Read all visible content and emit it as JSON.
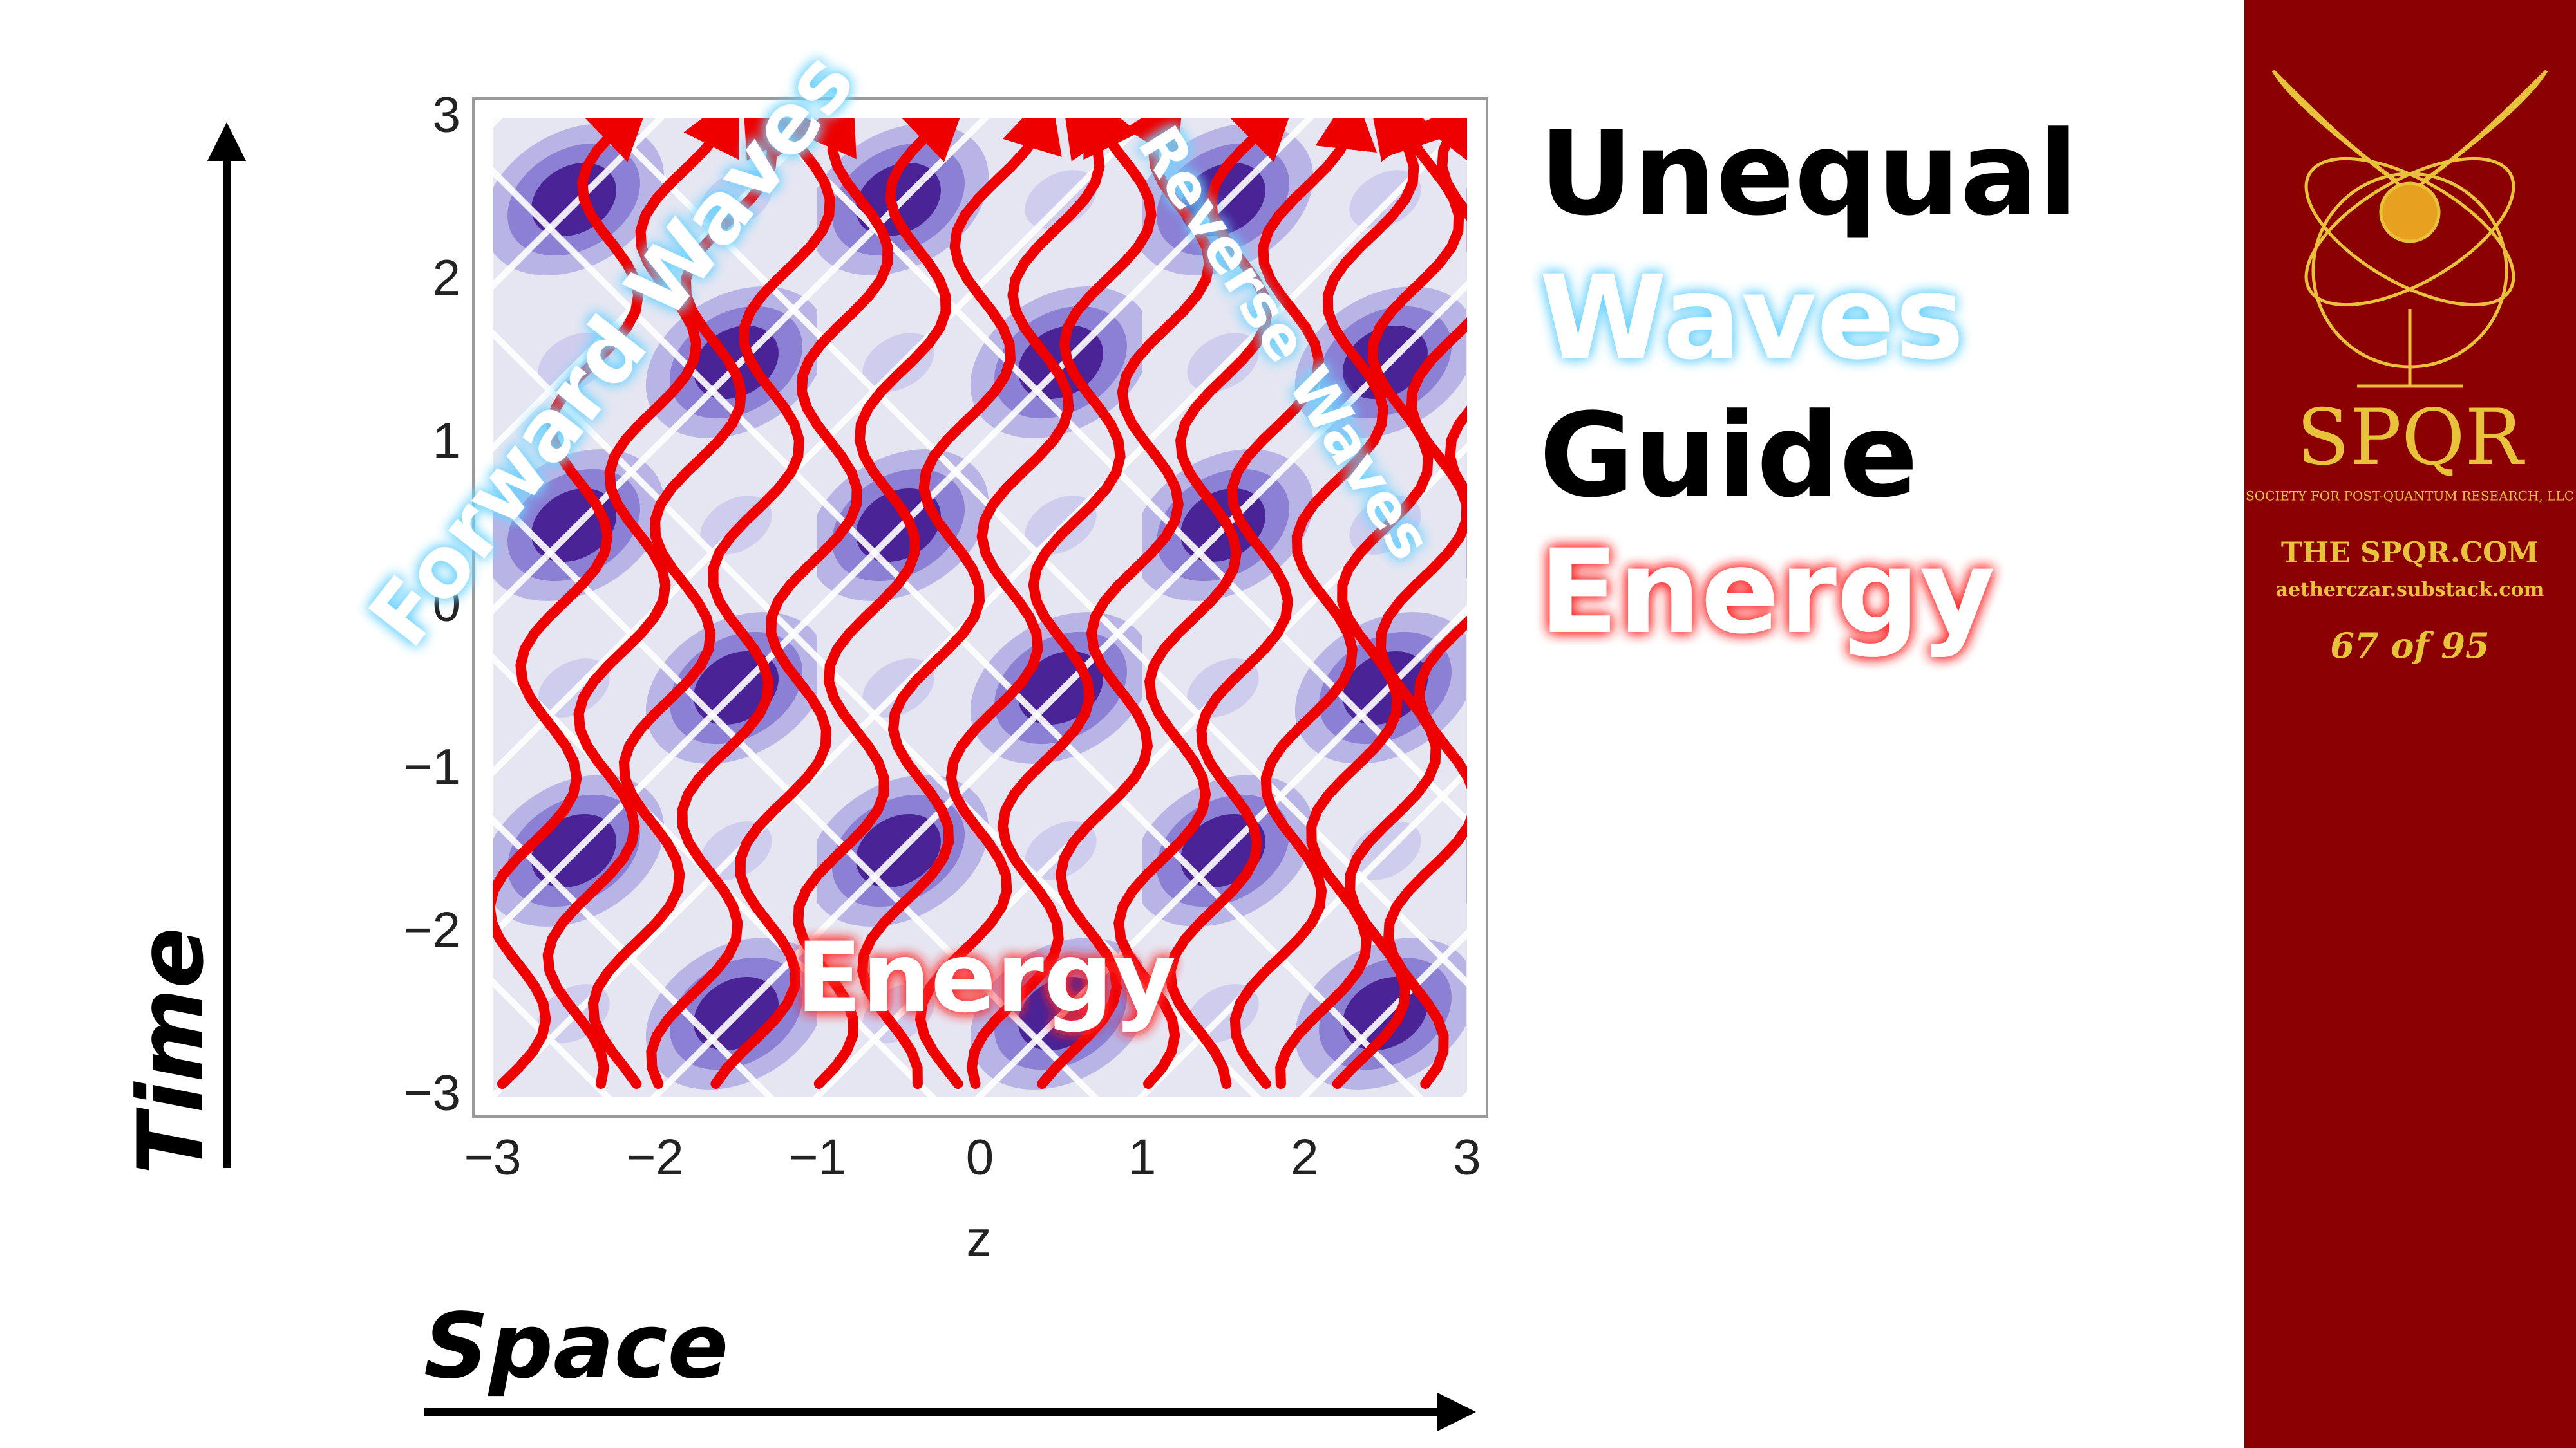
{
  "slide": {
    "headline": [
      "Unequal",
      "Waves",
      "Guide",
      "Energy"
    ],
    "axes": {
      "time": "Time",
      "space": "Space"
    },
    "plot": {
      "yticks": [
        "3",
        "2",
        "1",
        "0",
        "−1",
        "−2",
        "−3"
      ],
      "xticks": [
        "−3",
        "−2",
        "−1",
        "0",
        "1",
        "2",
        "3"
      ],
      "xlabel": "z",
      "forward": "Forward Waves",
      "reverse": "Reverse Waves",
      "energy": "Energy"
    },
    "sidebar": {
      "logo": "SPQR",
      "org": "SOCIETY FOR POST-QUANTUM RESEARCH, LLC",
      "site": "THE SPQR.COM",
      "substack": "aetherczar.substack.com",
      "page": "67 of 95"
    }
  }
}
